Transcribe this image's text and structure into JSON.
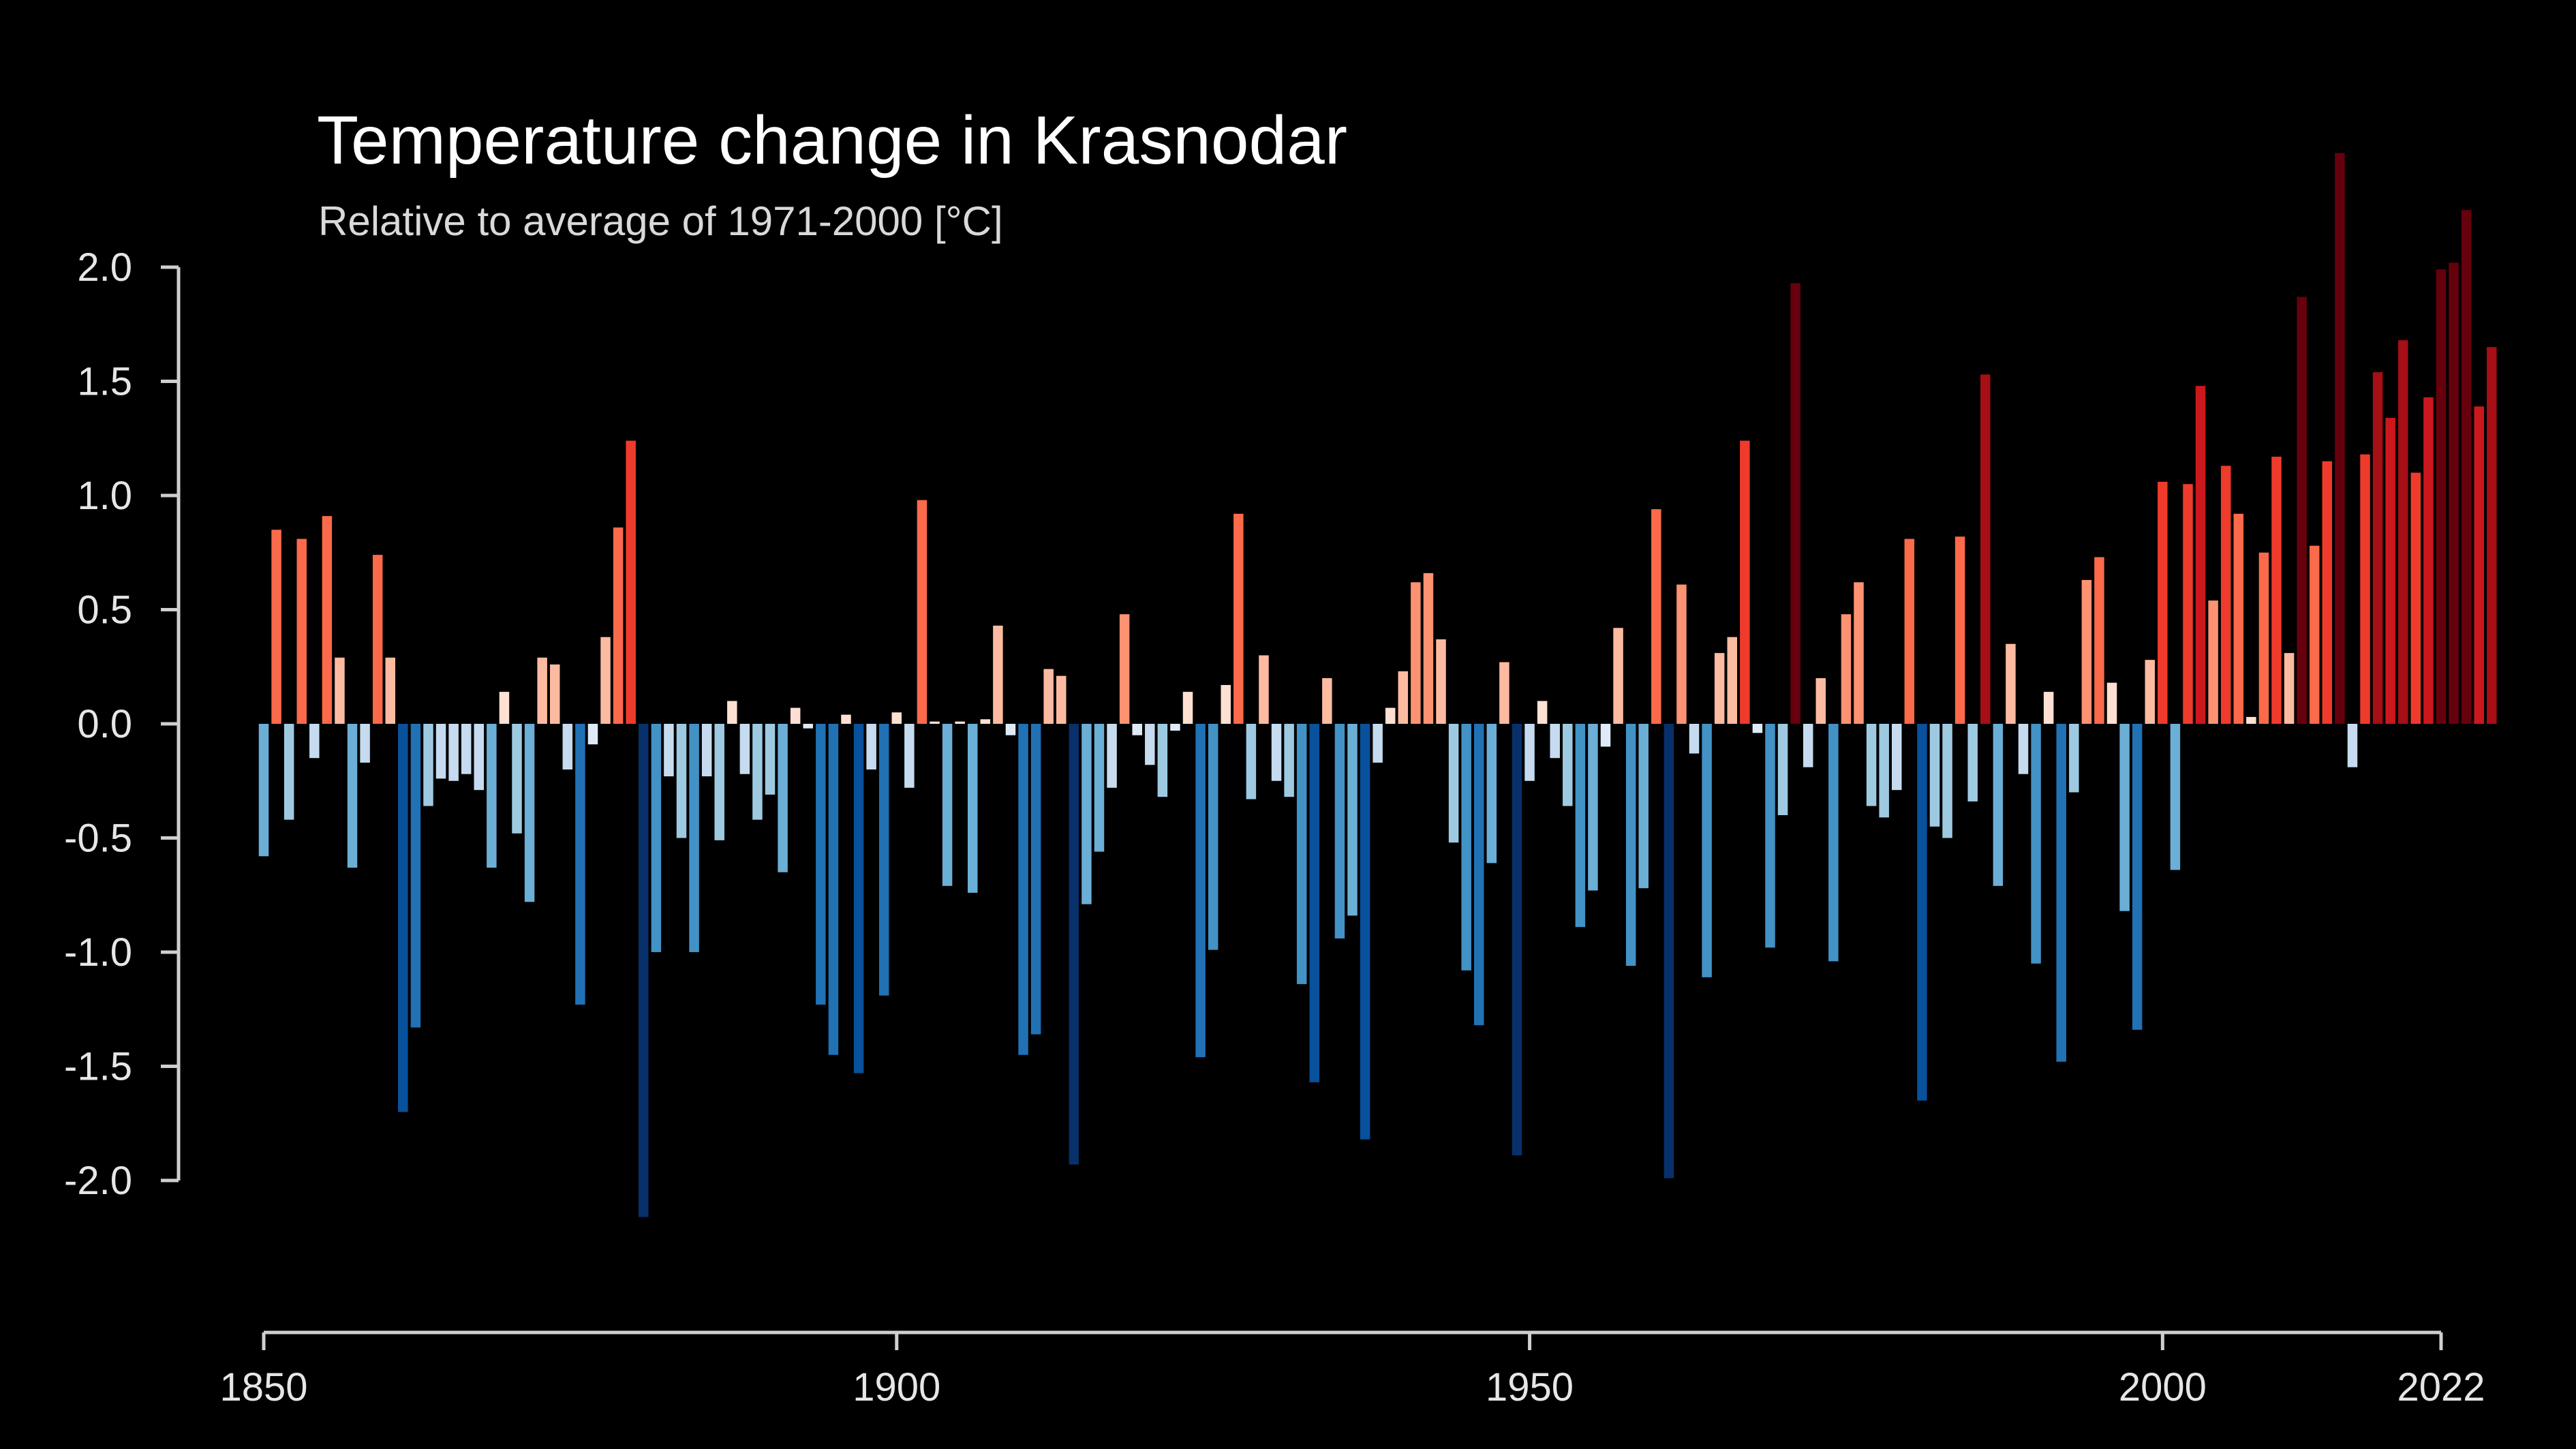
{
  "chart_data": {
    "type": "bar",
    "title": "Temperature change in Krasnodar",
    "subtitle": "Relative to average of 1971-2000  [°C]",
    "xlabel": "",
    "ylabel": "",
    "x_start": 1850,
    "x_end": 2022,
    "xlim": [
      1850,
      2022
    ],
    "ylim": [
      -2.5,
      2.5
    ],
    "x_ticks": [
      1850,
      1900,
      1950,
      2000,
      2022
    ],
    "x_tick_labels": [
      "1850",
      "1900",
      "1950",
      "2000",
      "2022"
    ],
    "y_ticks": [
      2.0,
      1.5,
      1.0,
      0.5,
      0.0,
      -0.5,
      -1.0,
      -1.5,
      -2.0
    ],
    "y_tick_labels": [
      "2.0",
      "1.5",
      "1.0",
      "0.5",
      "0.0",
      "-0.5",
      "-1.0",
      "-1.5",
      "-2.0"
    ],
    "grid": false,
    "legend": "none",
    "color_scale": {
      "cold": [
        "#08306b",
        "#08519c",
        "#2171b5",
        "#4292c6",
        "#6baed6",
        "#9ecae1",
        "#c6dbef",
        "#deebf7"
      ],
      "warm": [
        "#fee0d2",
        "#fcbba1",
        "#fc9272",
        "#fb6a4a",
        "#ef3b2c",
        "#cb181d",
        "#a50f15",
        "#67000d"
      ],
      "background": "#000000"
    },
    "series": [
      {
        "values": [
          -0.58,
          0.85,
          -0.42,
          0.81,
          -0.15,
          0.91,
          0.29,
          -0.63,
          -0.17,
          0.74,
          0.29,
          -1.7,
          -1.33,
          -0.36,
          -0.24,
          -0.25,
          -0.22,
          -0.29,
          -0.63,
          0.14,
          -0.48,
          -0.78,
          0.29,
          0.26,
          -0.2,
          -1.23,
          -0.09,
          0.38,
          0.86,
          1.24,
          -2.16,
          -1.0,
          -0.23,
          -0.5,
          -1.0,
          -0.23,
          -0.51,
          0.1,
          -0.22,
          -0.42,
          -0.31,
          -0.65,
          0.07,
          -0.02,
          -1.23,
          -1.45,
          0.04,
          -1.53,
          -0.2,
          -1.19,
          0.05,
          -0.28,
          0.98,
          0.01,
          -0.71,
          0.01,
          -0.74,
          0.02,
          0.43,
          -0.05,
          -1.45,
          -1.36,
          0.24,
          0.21,
          -1.93,
          -0.79,
          -0.56,
          -0.28,
          0.48,
          -0.05,
          -0.18,
          -0.32,
          -0.03,
          0.14,
          -1.46,
          -0.99,
          0.17,
          0.92,
          -0.33,
          0.3,
          -0.25,
          -0.32,
          -1.14,
          -1.57,
          0.2,
          -0.94,
          -0.84,
          -1.82,
          -0.17,
          0.07,
          0.23,
          0.62,
          0.66,
          0.37,
          -0.52,
          -1.08,
          -1.32,
          -0.61,
          0.27,
          -1.89,
          -0.25,
          0.1,
          -0.15,
          -0.36,
          -0.89,
          -0.73,
          -0.1,
          0.42,
          -1.06,
          -0.72,
          0.94,
          -1.99,
          0.61,
          -0.13,
          -1.11,
          0.31,
          0.38,
          1.24,
          -0.04,
          -0.98,
          -0.4,
          1.93,
          -0.19,
          0.2,
          -1.04,
          0.48,
          0.62,
          -0.36,
          -0.41,
          -0.29,
          0.81,
          -1.65,
          -0.45,
          -0.5,
          0.82,
          -0.34,
          1.53,
          -0.71,
          0.35,
          -0.22,
          -1.05,
          0.14,
          -1.48,
          -0.3,
          0.63,
          0.73,
          0.18,
          -0.82,
          -1.34,
          0.28,
          1.06,
          -0.64,
          1.05,
          1.48,
          0.54,
          1.13,
          0.92,
          0.03,
          0.75,
          1.17,
          0.31,
          1.87,
          0.78,
          1.15,
          2.5,
          -0.19,
          1.18,
          1.54,
          1.34,
          1.68,
          1.1,
          1.43,
          1.99,
          2.02,
          2.25,
          1.39,
          1.65
        ]
      }
    ]
  }
}
